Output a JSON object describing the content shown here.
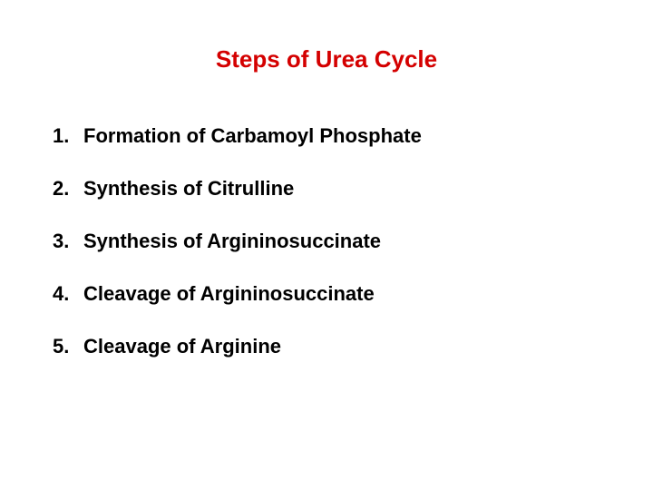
{
  "title": {
    "text": "Steps of Urea Cycle",
    "color": "#d40000",
    "fontsize": 26
  },
  "list": {
    "fontsize": 22,
    "text_color": "#000000",
    "items": [
      {
        "number": "1.",
        "text": "Formation of Carbamoyl Phosphate"
      },
      {
        "number": "2.",
        "text": "Synthesis of Citrulline"
      },
      {
        "number": "3.",
        "text": "Synthesis of Argininosuccinate"
      },
      {
        "number": "4.",
        "text": "Cleavage of Argininosuccinate"
      },
      {
        "number": "5.",
        "text": "Cleavage of Arginine"
      }
    ]
  },
  "background_color": "#ffffff"
}
